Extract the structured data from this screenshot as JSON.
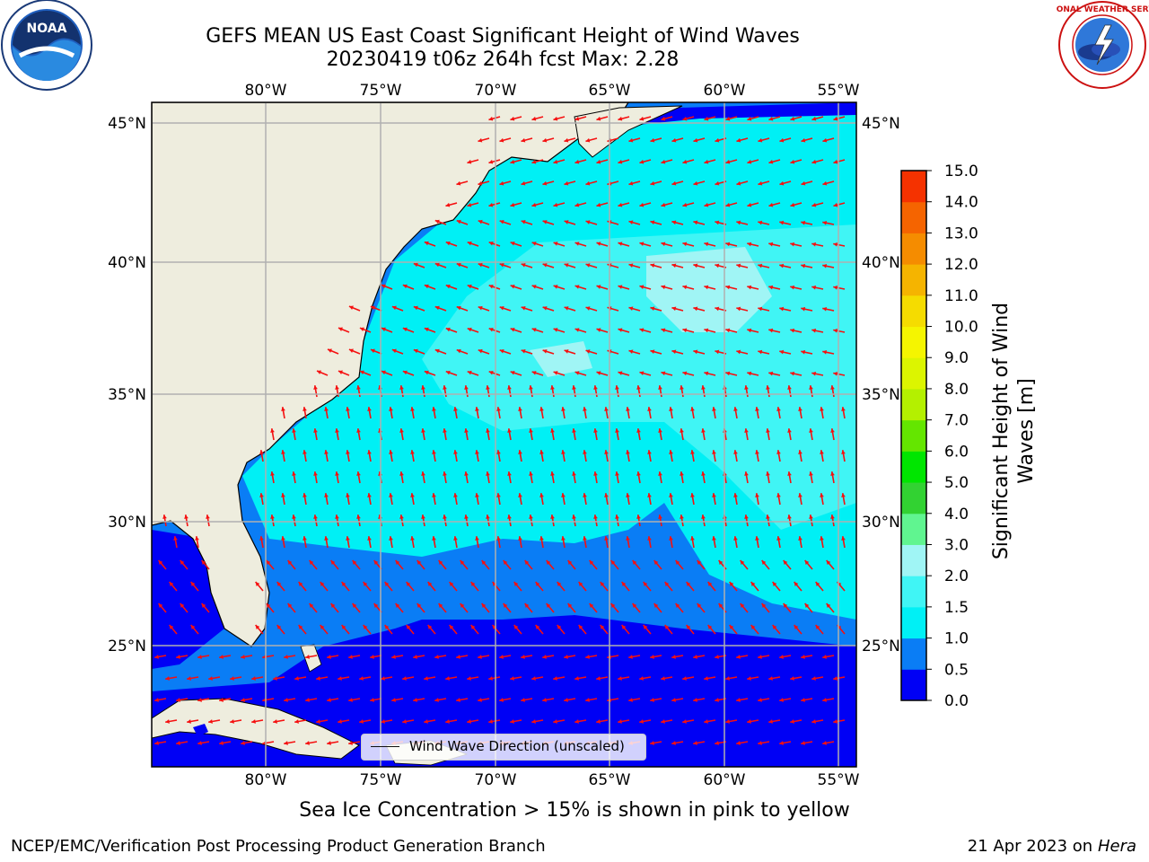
{
  "title_line1": "GEFS MEAN US East Coast Significant Height of Wind Waves",
  "title_line2": "20230419 t06z 264h fcst   Max: 2.28",
  "map": {
    "lon_ticks": [
      "80°W",
      "75°W",
      "70°W",
      "65°W",
      "60°W",
      "55°W"
    ],
    "lat_ticks": [
      "45°N",
      "40°N",
      "35°N",
      "30°N",
      "25°N"
    ],
    "legend_label": "Wind Wave Direction (unscaled)"
  },
  "colorbar": {
    "label": "Significant Height of Wind Waves [m]",
    "label_line1": "Significant Height of Wind",
    "label_line2": "Waves [m]",
    "ticks": [
      "15.0",
      "14.0",
      "13.0",
      "12.0",
      "11.0",
      "10.0",
      "9.0",
      "8.0",
      "7.0",
      "6.0",
      "5.0",
      "4.0",
      "3.0",
      "2.0",
      "1.5",
      "1.0",
      "0.5",
      "0.0"
    ],
    "colors": [
      "#0000f5",
      "#0a7df5",
      "#00f0f5",
      "#40f5f5",
      "#a0f5f5",
      "#60f590",
      "#32d232",
      "#00e600",
      "#64e600",
      "#b4f000",
      "#dcf500",
      "#f5f500",
      "#f5dc00",
      "#f5b400",
      "#f58c00",
      "#f56400",
      "#f53200",
      "#f50000"
    ]
  },
  "footer": {
    "note": "Sea Ice Concentration > 15% is shown in pink to yellow",
    "left": "NCEP/EMC/Verification Post Processing Product Generation Branch",
    "right_date": "21 Apr 2023 on ",
    "right_host": "Hera"
  },
  "logos": {
    "noaa_text": "NOAA",
    "noaa_icon": "noaa-logo",
    "nws_text": "NATIONAL WEATHER SERVICE",
    "nws_icon": "nws-logo"
  }
}
